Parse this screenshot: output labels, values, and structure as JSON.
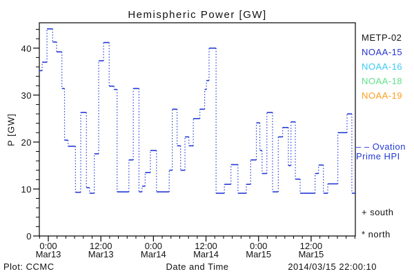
{
  "title": "Hemispheric Power [GW]",
  "axes": {
    "ylabel": "P [GW]",
    "xlabel": "Date and Time"
  },
  "footer": {
    "plot_credit": "Plot: CCMC",
    "timestamp": "2014/03/15 22:00:10"
  },
  "legend": {
    "satellites": [
      {
        "label": "METP-02",
        "color": "#111111"
      },
      {
        "label": "NOAA-15",
        "color": "#2233cc"
      },
      {
        "label": "NOAA-16",
        "color": "#3cc8f5"
      },
      {
        "label": "NOAA-18",
        "color": "#5fe08a"
      },
      {
        "label": "NOAA-19",
        "color": "#ff9d1e"
      }
    ],
    "ovation": {
      "marker": "– –",
      "line1": "Ovation",
      "line2": "Prime HPI",
      "color": "#2239d6"
    },
    "south_label": "+ south",
    "north_label": "* north"
  },
  "colors": {
    "curve": "#2239d6",
    "frame": "#000000",
    "text": "#111111"
  },
  "chart_data": {
    "type": "line",
    "subtype": "step-hold (horizontal solid segments, dotted vertical connectors)",
    "title": "Hemispheric Power [GW]",
    "xlabel": "Date and Time",
    "ylabel": "P [GW]",
    "x_unit": "hours since 2014-03-13 00:00 UT",
    "xlim": [
      -2.05,
      70.1
    ],
    "ylim": [
      0,
      45.4
    ],
    "y_major_ticks": [
      0,
      10,
      20,
      30,
      40
    ],
    "y_minor_step": 2,
    "x_major_ticks": [
      0,
      12,
      24,
      36,
      48,
      60
    ],
    "x_minor_step": 2,
    "x_tick_labels": [
      {
        "time": "0:00",
        "date": "Mar13"
      },
      {
        "time": "12:00",
        "date": "Mar13"
      },
      {
        "time": "0:00",
        "date": "Mar14"
      },
      {
        "time": "12:00",
        "date": "Mar14"
      },
      {
        "time": "0:00",
        "date": "Mar15"
      },
      {
        "time": "12:00",
        "date": "Mar15"
      }
    ],
    "grid": false,
    "legend_position": "right margin",
    "series": [
      {
        "name": "Ovation Prime HPI",
        "color": "#2239d6",
        "steps_t_hours_value_gw": [
          [
            -2.05,
            35.2
          ],
          [
            -1.4,
            37.0
          ],
          [
            -0.3,
            44.1
          ],
          [
            1.0,
            41.3
          ],
          [
            1.9,
            39.2
          ],
          [
            3.1,
            31.4
          ],
          [
            3.7,
            20.4
          ],
          [
            4.5,
            19.1
          ],
          [
            6.2,
            9.3
          ],
          [
            7.4,
            26.3
          ],
          [
            8.7,
            10.3
          ],
          [
            9.4,
            9.1
          ],
          [
            10.5,
            17.5
          ],
          [
            11.5,
            37.3
          ],
          [
            12.6,
            41.2
          ],
          [
            13.9,
            31.9
          ],
          [
            15.0,
            31.2
          ],
          [
            15.7,
            9.4
          ],
          [
            18.4,
            16.2
          ],
          [
            19.4,
            31.4
          ],
          [
            20.7,
            9.4
          ],
          [
            21.4,
            10.6
          ],
          [
            22.1,
            13.5
          ],
          [
            23.3,
            18.2
          ],
          [
            24.7,
            9.4
          ],
          [
            27.6,
            14.0
          ],
          [
            28.3,
            27.0
          ],
          [
            29.4,
            19.2
          ],
          [
            30.2,
            14.0
          ],
          [
            31.2,
            21.1
          ],
          [
            32.1,
            19.2
          ],
          [
            33.1,
            25.0
          ],
          [
            34.6,
            27.0
          ],
          [
            35.7,
            31.2
          ],
          [
            36.1,
            33.1
          ],
          [
            36.7,
            40.0
          ],
          [
            38.3,
            9.1
          ],
          [
            40.2,
            11.0
          ],
          [
            41.7,
            15.2
          ],
          [
            43.3,
            9.1
          ],
          [
            45.2,
            11.0
          ],
          [
            46.2,
            16.2
          ],
          [
            47.5,
            24.1
          ],
          [
            48.3,
            18.2
          ],
          [
            48.8,
            13.3
          ],
          [
            49.9,
            26.3
          ],
          [
            51.2,
            9.4
          ],
          [
            52.5,
            21.1
          ],
          [
            53.5,
            23.1
          ],
          [
            54.8,
            15.0
          ],
          [
            55.4,
            24.3
          ],
          [
            56.4,
            12.1
          ],
          [
            57.5,
            9.1
          ],
          [
            60.9,
            13.3
          ],
          [
            61.7,
            15.1
          ],
          [
            62.8,
            9.1
          ],
          [
            63.8,
            11.1
          ],
          [
            66.1,
            22.0
          ],
          [
            68.2,
            26.0
          ],
          [
            69.3,
            9.1
          ]
        ]
      }
    ]
  }
}
